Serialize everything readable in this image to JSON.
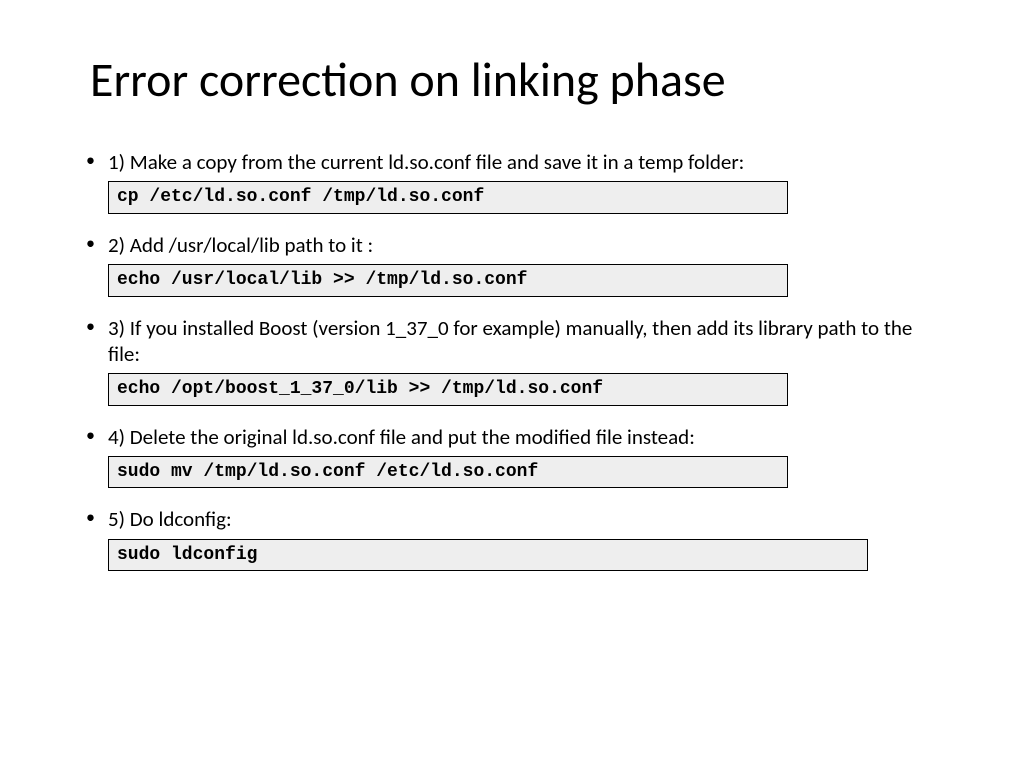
{
  "title": "Error correction on linking phase",
  "steps": [
    {
      "text": "1) Make a copy from the current ld.so.conf file and save it in a temp folder:",
      "code": "cp /etc/ld.so.conf /tmp/ld.so.conf",
      "code_wide": false
    },
    {
      "text": "2) Add /usr/local/lib path to it :",
      "code": "echo /usr/local/lib >> /tmp/ld.so.conf",
      "code_wide": false
    },
    {
      "text": "3) If you installed Boost (version 1_37_0 for example) manually, then add its library path to the file:",
      "code": "echo /opt/boost_1_37_0/lib >> /tmp/ld.so.conf",
      "code_wide": false
    },
    {
      "text": "4) Delete the original ld.so.conf file and put the modified file instead:",
      "code": "sudo mv /tmp/ld.so.conf /etc/ld.so.conf",
      "code_wide": false
    },
    {
      "text": "5) Do ldconfig:",
      "code": "sudo ldconfig",
      "code_wide": true
    }
  ],
  "style": {
    "background_color": "#ffffff",
    "text_color": "#000000",
    "title_fontsize": 48,
    "body_fontsize": 21,
    "code_fontsize": 18,
    "codebox_bg": "#eeeeee",
    "codebox_border": "#000000",
    "font_family_body": "Calibri, Arial, sans-serif",
    "font_family_code": "Courier New, monospace"
  }
}
